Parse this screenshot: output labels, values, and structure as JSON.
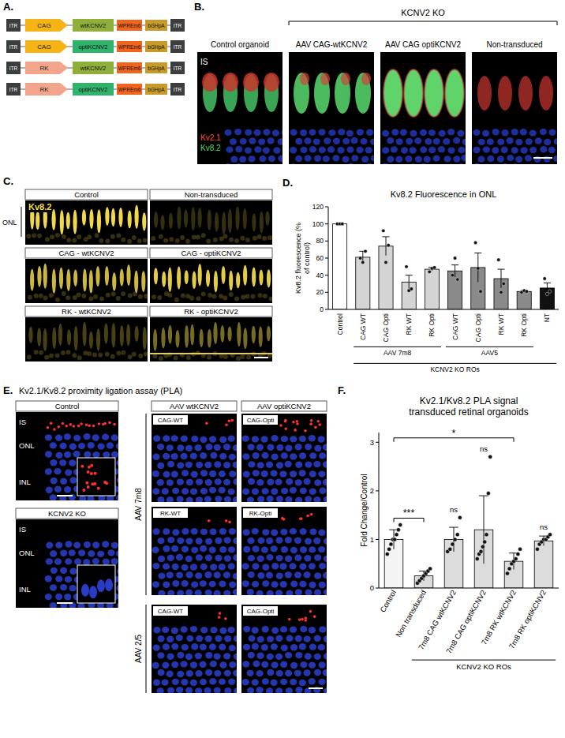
{
  "panel_labels": [
    "A.",
    "B.",
    "C.",
    "D.",
    "E.",
    "F."
  ],
  "constructs": {
    "itr": "ITR",
    "wpre": "WPREm6",
    "polya": "bGHpA",
    "rows": [
      {
        "promoter": "CAG",
        "gene": "wtKCNV2"
      },
      {
        "promoter": "CAG",
        "gene": "optiKCNV2"
      },
      {
        "promoter": "RK",
        "gene": "wtKCNV2"
      },
      {
        "promoter": "RK",
        "gene": "optiKCNV2"
      }
    ]
  },
  "panel_b": {
    "group": "KCNV2 KO",
    "columns": [
      "Control organoid",
      "AAV CAG-wtKCNV2",
      "AAV CAG optiKCNV2",
      "Non-transduced"
    ],
    "labels": [
      "IS",
      "Kv2.1",
      "Kv8.2"
    ]
  },
  "panel_c": {
    "stain": "Kv8.2",
    "layer": "ONL",
    "images": [
      "Control",
      "Non-transduced",
      "CAG - wtKCNV2",
      "CAG - optiKCNV2",
      "RK - wtKCNV2",
      "RK - optiKCNV2"
    ]
  },
  "panel_e": {
    "title": "Kv2.1/Kv8.2 proximity ligation assay (PLA)",
    "left": [
      "Control",
      "KCNV2 KO"
    ],
    "layers": [
      "IS",
      "ONL",
      "INL"
    ],
    "columns": [
      "AAV wtKCNV2",
      "AAV optiKCNV2"
    ],
    "rows": [
      {
        "vector": "AAV 7m8",
        "images": [
          [
            "CAG-WT",
            "CAG-Opti"
          ],
          [
            "RK-WT",
            "RK-Opti"
          ]
        ]
      },
      {
        "vector": "AAV 2/5",
        "images": [
          [
            "CAG-WT",
            "CAG-Opti"
          ]
        ]
      }
    ]
  },
  "chart_data": [
    {
      "type": "bar",
      "title": "Kv8.2 Fluorescence in ONL",
      "ylabel": "Kv8.2 fluorescence (% of control)",
      "categories": [
        "Control",
        "CAG WT",
        "CAG Opti",
        "RK WT",
        "RK Opti",
        "CAG WT",
        "CAG Opti",
        "RK WT",
        "RK Opti",
        "NT"
      ],
      "values": [
        100,
        61,
        74,
        32,
        47,
        45,
        49,
        36,
        21,
        25
      ],
      "errors": [
        0,
        7,
        11,
        8,
        2,
        7,
        17,
        11,
        1,
        6
      ],
      "points": [
        [
          100,
          100,
          100
        ],
        [
          60,
          55,
          68
        ],
        [
          92,
          55,
          75
        ],
        [
          50,
          22,
          24
        ],
        [
          44,
          48,
          49
        ],
        [
          40,
          60,
          35
        ],
        [
          78,
          48,
          21
        ],
        [
          58,
          20,
          30
        ],
        [
          20,
          22,
          21
        ],
        [
          36,
          18,
          21
        ]
      ],
      "colors": [
        "#ffffff",
        "#d4d4d4",
        "#d4d4d4",
        "#d4d4d4",
        "#d4d4d4",
        "#8a8a8a",
        "#8a8a8a",
        "#8a8a8a",
        "#8a8a8a",
        "#111111"
      ],
      "group_rows": [
        [
          null,
          "AAV 7m8",
          "AAV 7m8",
          "AAV 7m8",
          "AAV 7m8",
          "AAV5",
          "AAV5",
          "AAV5",
          "AAV5",
          null
        ],
        [
          null,
          "KCNV2 KO ROs",
          "KCNV2 KO ROs",
          "KCNV2 KO ROs",
          "KCNV2 KO ROs",
          "KCNV2 KO ROs",
          "KCNV2 KO ROs",
          "KCNV2 KO ROs",
          "KCNV2 KO ROs",
          "KCNV2 KO ROs"
        ]
      ],
      "ylim": [
        0,
        120
      ],
      "yticks": [
        0,
        20,
        40,
        60,
        80,
        100,
        120
      ]
    },
    {
      "type": "bar",
      "title": "Kv2.1/Kv8.2 PLA signal",
      "subtitle": "transduced retinal organoids",
      "ylabel": "Fold Change/Control",
      "categories": [
        "Control",
        "Non transduced",
        "7m8 CAG wtKCNV2",
        "7m8 CAG optiKCNV2",
        "7m8 RK wtKCNV2",
        "7m8 RK optiKCNV2"
      ],
      "values": [
        1.0,
        0.25,
        1.0,
        1.2,
        0.55,
        0.97
      ],
      "errors": [
        0.2,
        0.1,
        0.25,
        0.7,
        0.17,
        0.1
      ],
      "points": [
        [
          0.7,
          0.8,
          0.9,
          1.0,
          1.0,
          1.1,
          1.2,
          1.3
        ],
        [
          0.1,
          0.15,
          0.2,
          0.25,
          0.3,
          0.35,
          0.4
        ],
        [
          0.75,
          0.8,
          0.9,
          1.0,
          1.1,
          1.45
        ],
        [
          0.6,
          0.7,
          0.75,
          0.85,
          0.95,
          1.1,
          1.95,
          2.7
        ],
        [
          0.3,
          0.4,
          0.5,
          0.55,
          0.6,
          0.7,
          0.8
        ],
        [
          0.8,
          0.9,
          0.95,
          1.0,
          1.0,
          1.05,
          1.1
        ]
      ],
      "colors": [
        "#f4f4f4",
        "#dcdcdc",
        "#dcdcdc",
        "#dcdcdc",
        "#dcdcdc",
        "#dcdcdc"
      ],
      "significance": [
        null,
        null,
        "ns",
        "ns",
        null,
        "ns"
      ],
      "comparisons": [
        {
          "categories": [
            "Control",
            "Non transduced"
          ],
          "label": "***"
        },
        {
          "categories": [
            "Control",
            "7m8 RK wtKCNV2"
          ],
          "label": "*"
        }
      ],
      "group_rows": [
        [
          null,
          "KCNV2 KO ROs",
          "KCNV2 KO ROs",
          "KCNV2 KO ROs",
          "KCNV2 KO ROs",
          "KCNV2 KO ROs"
        ]
      ],
      "ylim": [
        0,
        3.2
      ],
      "yticks": [
        0,
        1,
        2,
        3
      ]
    }
  ]
}
